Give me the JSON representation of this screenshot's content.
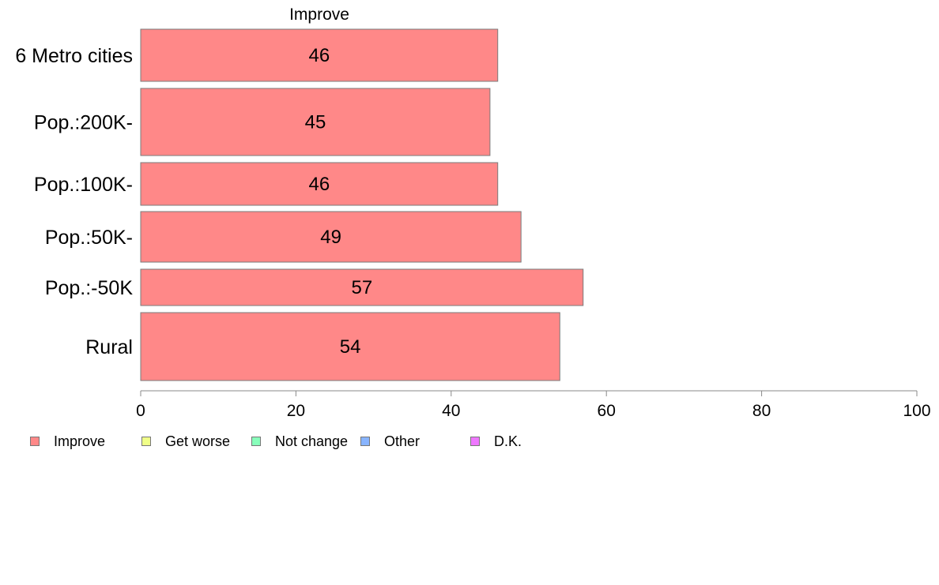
{
  "chart_data": {
    "type": "bar",
    "orientation": "horizontal",
    "title": "Improve",
    "categories": [
      "6 Metro cities",
      "Pop.:200K-",
      "Pop.:100K-",
      "Pop.:50K-",
      "Pop.:-50K",
      "Rural"
    ],
    "series": [
      {
        "name": "Improve",
        "values": [
          46,
          45,
          46,
          49,
          57,
          54
        ],
        "color": "#ff8888"
      }
    ],
    "data_labels": [
      "46",
      "45",
      "46",
      "49",
      "57",
      "54"
    ],
    "xlim": [
      0,
      100
    ],
    "x_ticks": [
      "0",
      "20",
      "40",
      "60",
      "80",
      "100"
    ],
    "grid": false,
    "legend_position": "bottom-left",
    "legend": [
      {
        "label": "Improve",
        "color": "#ff8888"
      },
      {
        "label": "Get worse",
        "color": "#f0ff88"
      },
      {
        "label": "Not change",
        "color": "#88ffbb"
      },
      {
        "label": "Other",
        "color": "#88b4ff"
      },
      {
        "label": "D.K.",
        "color": "#ee77ff"
      }
    ]
  }
}
